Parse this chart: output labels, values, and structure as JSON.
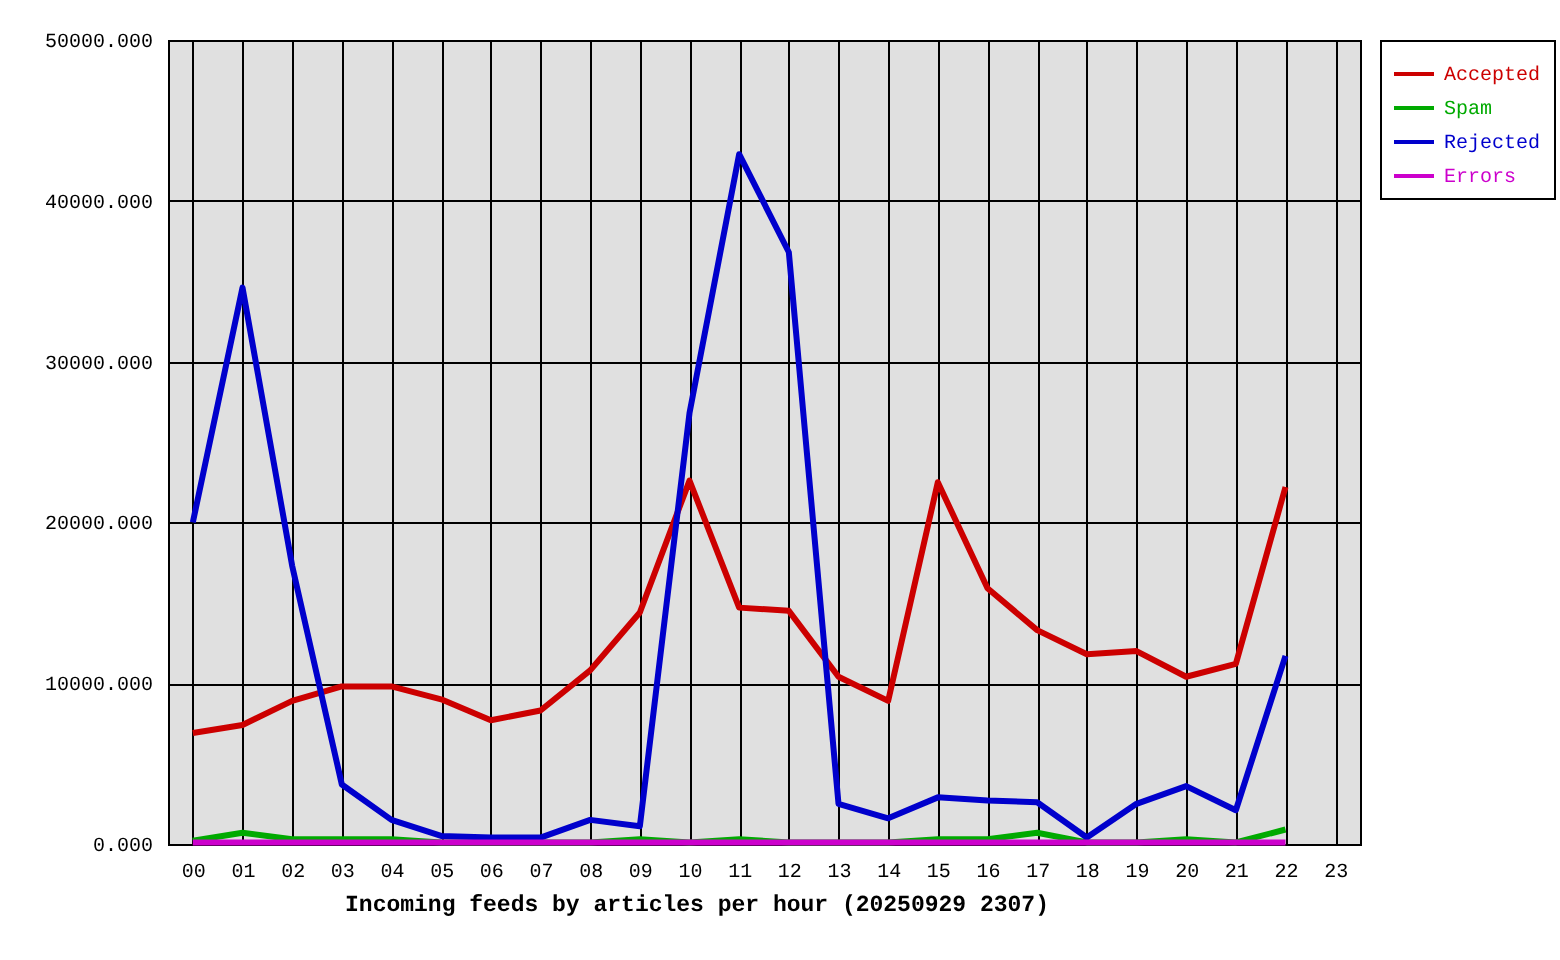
{
  "chart_data": {
    "type": "line",
    "categories": [
      "00",
      "01",
      "02",
      "03",
      "04",
      "05",
      "06",
      "07",
      "08",
      "09",
      "10",
      "11",
      "12",
      "13",
      "14",
      "15",
      "16",
      "17",
      "18",
      "19",
      "20",
      "21",
      "22",
      "23"
    ],
    "series": [
      {
        "name": "Accepted",
        "color": "#cc0000",
        "values": [
          6900,
          7400,
          8900,
          9800,
          9800,
          9000,
          7700,
          8300,
          10800,
          14400,
          22600,
          14700,
          14500,
          10400,
          8900,
          22500,
          15900,
          13300,
          11800,
          12000,
          10400,
          11200,
          22200,
          null
        ]
      },
      {
        "name": "Spam",
        "color": "#00aa00",
        "values": [
          200,
          700,
          300,
          300,
          300,
          100,
          100,
          100,
          100,
          300,
          100,
          300,
          100,
          100,
          100,
          300,
          300,
          700,
          100,
          100,
          300,
          100,
          900,
          null
        ]
      },
      {
        "name": "Rejected",
        "color": "#0000cc",
        "values": [
          20000,
          34600,
          17300,
          3700,
          1500,
          500,
          400,
          400,
          1500,
          1100,
          26800,
          42900,
          36800,
          2500,
          1600,
          2900,
          2700,
          2600,
          400,
          2500,
          3600,
          2100,
          11700,
          null
        ]
      },
      {
        "name": "Errors",
        "color": "#cc00cc",
        "values": [
          100,
          100,
          100,
          100,
          100,
          100,
          100,
          100,
          100,
          100,
          100,
          100,
          100,
          100,
          100,
          100,
          100,
          100,
          100,
          100,
          100,
          100,
          100,
          null
        ]
      }
    ],
    "xlabel": "Incoming feeds by articles per hour (20250929 2307)",
    "ylim": [
      0,
      50000
    ],
    "yticks": [
      {
        "value": 0,
        "label": "0.000"
      },
      {
        "value": 10000,
        "label": "10000.000"
      },
      {
        "value": 20000,
        "label": "20000.000"
      },
      {
        "value": 30000,
        "label": "30000.000"
      },
      {
        "value": 40000,
        "label": "40000.000"
      },
      {
        "value": 50000,
        "label": "50000.000"
      }
    ],
    "grid": true,
    "legend": "top right",
    "line_style": "solid"
  }
}
